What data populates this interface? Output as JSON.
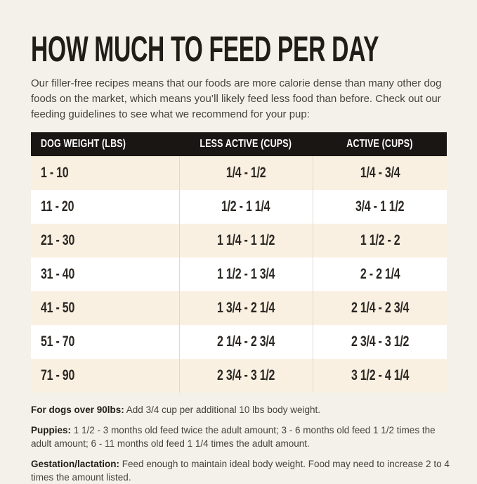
{
  "page": {
    "background": "#F4F1EA"
  },
  "header": {
    "title": "HOW MUCH TO FEED PER DAY",
    "intro": "Our filler-free recipes means that our foods are more calorie dense than many other dog foods on the market, which means you’ll likely feed less food than before. Check out our feeding guidelines to see what we recommend for your pup:"
  },
  "table": {
    "columns": [
      "DOG WEIGHT (LBS)",
      "LESS ACTIVE (CUPS)",
      "ACTIVE (CUPS)"
    ],
    "rows": [
      {
        "weight": "1 - 10",
        "less_active": "1/4 - 1/2",
        "active": "1/4 - 3/4"
      },
      {
        "weight": "11 - 20",
        "less_active": "1/2 - 1 1/4",
        "active": "3/4 - 1 1/2"
      },
      {
        "weight": "21 - 30",
        "less_active": "1 1/4 - 1 1/2",
        "active": "1 1/2 - 2"
      },
      {
        "weight": "31 - 40",
        "less_active": "1 1/2 - 1 3/4",
        "active": "2 - 2 1/4"
      },
      {
        "weight": "41 - 50",
        "less_active": "1 3/4 - 2 1/4",
        "active": "2 1/4 - 2 3/4"
      },
      {
        "weight": "51 - 70",
        "less_active": "2 1/4 - 2 3/4",
        "active": "2 3/4 - 3 1/2"
      },
      {
        "weight": "71 - 90",
        "less_active": "2 3/4 - 3 1/2",
        "active": "3 1/2 - 4 1/4"
      }
    ],
    "colors": {
      "header_bg": "#1A1613",
      "header_text": "#FFFFFF",
      "row_odd_bg": "#FAF0E2",
      "row_even_bg": "#FFFFFF",
      "cell_text": "#2B2723",
      "column_divider": "#DFD9CF"
    }
  },
  "notes": [
    {
      "label": "For dogs over 90lbs:",
      "text": "Add 3/4 cup per additional 10 lbs body weight."
    },
    {
      "label": "Puppies:",
      "text": "1 1/2 - 3 months old feed twice the adult amount; 3 - 6 months old feed 1 1/2 times the adult amount; 6 - 11 months old feed 1 1/4 times the adult amount."
    },
    {
      "label": "Gestation/lactation:",
      "text": "Feed enough to maintain ideal body weight. Food may need to increase 2 to 4 times the amount listed."
    }
  ]
}
